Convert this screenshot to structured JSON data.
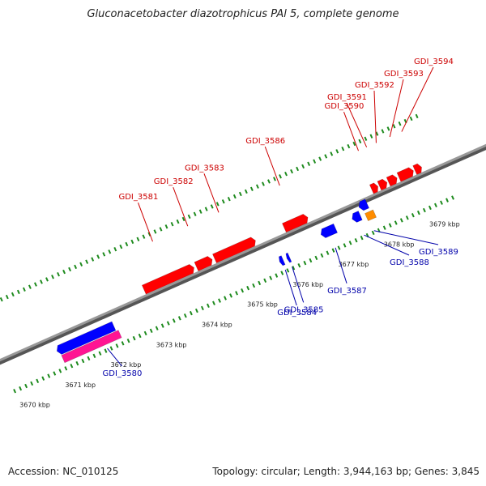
{
  "header": {
    "title": "Gluconacetobacter diazotrophicus PAl 5, complete genome"
  },
  "footer": {
    "accession": "Accession: NC_010125",
    "stats": "Topology: circular; Length: 3,944,163 bp; Genes: 3,845"
  },
  "colors": {
    "forward_gene": "#ff0000",
    "reverse_gene": "#0000ff",
    "rna_gene": "#ff1493",
    "other_gene": "#ff8c00",
    "backbone": "#888888",
    "ticks": "#1d8a1d",
    "forward_label": "#cc0000",
    "reverse_label": "#0000aa"
  },
  "scale": {
    "start_kbp": 3670,
    "end_kbp": 3679,
    "tick_labels": [
      "3670 kbp",
      "3671 kbp",
      "3672 kbp",
      "3673 kbp",
      "3674 kbp",
      "3675 kbp",
      "3676 kbp",
      "3677 kbp",
      "3678 kbp",
      "3679 kbp"
    ]
  },
  "genes": [
    {
      "id": "GDI_3580",
      "strand": "reverse",
      "start_kbp": 3670.9,
      "end_kbp": 3672.15
    },
    {
      "id": "rna_3672",
      "strand": "rna",
      "start_kbp": 3670.95,
      "end_kbp": 3672.2
    },
    {
      "id": "GDI_3581",
      "strand": "forward",
      "start_kbp": 3673.0,
      "end_kbp": 3674.1
    },
    {
      "id": "GDI_3582",
      "strand": "forward",
      "start_kbp": 3674.15,
      "end_kbp": 3674.5
    },
    {
      "id": "GDI_3583",
      "strand": "forward",
      "start_kbp": 3674.55,
      "end_kbp": 3675.45
    },
    {
      "id": "GDI_3584",
      "strand": "reverse",
      "start_kbp": 3675.72,
      "end_kbp": 3675.8
    },
    {
      "id": "GDI_3585",
      "strand": "reverse",
      "start_kbp": 3675.88,
      "end_kbp": 3675.94
    },
    {
      "id": "GDI_3586",
      "strand": "forward",
      "start_kbp": 3676.08,
      "end_kbp": 3676.6
    },
    {
      "id": "GDI_3587",
      "strand": "reverse",
      "start_kbp": 3676.7,
      "end_kbp": 3677.02
    },
    {
      "id": "GDI_3588",
      "strand": "reverse",
      "start_kbp": 3677.4,
      "end_kbp": 3677.58
    },
    {
      "id": "GDI_3589",
      "strand": "reverse",
      "start_kbp": 3677.62,
      "end_kbp": 3677.8
    },
    {
      "id": "other_3678",
      "strand": "other",
      "start_kbp": 3677.68,
      "end_kbp": 3677.86
    },
    {
      "id": "GDI_3590",
      "strand": "forward",
      "start_kbp": 3678.0,
      "end_kbp": 3678.14
    },
    {
      "id": "GDI_3591",
      "strand": "forward",
      "start_kbp": 3678.17,
      "end_kbp": 3678.34
    },
    {
      "id": "GDI_3592",
      "strand": "forward",
      "start_kbp": 3678.37,
      "end_kbp": 3678.56
    },
    {
      "id": "GDI_3593",
      "strand": "forward",
      "start_kbp": 3678.6,
      "end_kbp": 3678.92
    },
    {
      "id": "GDI_3594",
      "strand": "forward",
      "start_kbp": 3678.95,
      "end_kbp": 3679.1
    }
  ],
  "labels": [
    {
      "text": "GDI_3580",
      "strand": "reverse",
      "at_kbp": 3671.85
    },
    {
      "text": "GDI_3581",
      "strand": "forward",
      "at_kbp": 3673.55
    },
    {
      "text": "GDI_3582",
      "strand": "forward",
      "at_kbp": 3674.32
    },
    {
      "text": "GDI_3583",
      "strand": "forward",
      "at_kbp": 3675.0
    },
    {
      "text": "GDI_3584",
      "strand": "reverse",
      "at_kbp": 3675.76
    },
    {
      "text": "GDI_3585",
      "strand": "reverse",
      "at_kbp": 3675.91
    },
    {
      "text": "GDI_3586",
      "strand": "forward",
      "at_kbp": 3676.34
    },
    {
      "text": "GDI_3587",
      "strand": "reverse",
      "at_kbp": 3676.86
    },
    {
      "text": "GDI_3588",
      "strand": "reverse",
      "at_kbp": 3677.49
    },
    {
      "text": "GDI_3589",
      "strand": "reverse",
      "at_kbp": 3677.71
    },
    {
      "text": "GDI_3590",
      "strand": "forward",
      "at_kbp": 3678.07
    },
    {
      "text": "GDI_3591",
      "strand": "forward",
      "at_kbp": 3678.25
    },
    {
      "text": "GDI_3592",
      "strand": "forward",
      "at_kbp": 3678.46
    },
    {
      "text": "GDI_3593",
      "strand": "forward",
      "at_kbp": 3678.76
    },
    {
      "text": "GDI_3594",
      "strand": "forward",
      "at_kbp": 3679.02
    }
  ]
}
